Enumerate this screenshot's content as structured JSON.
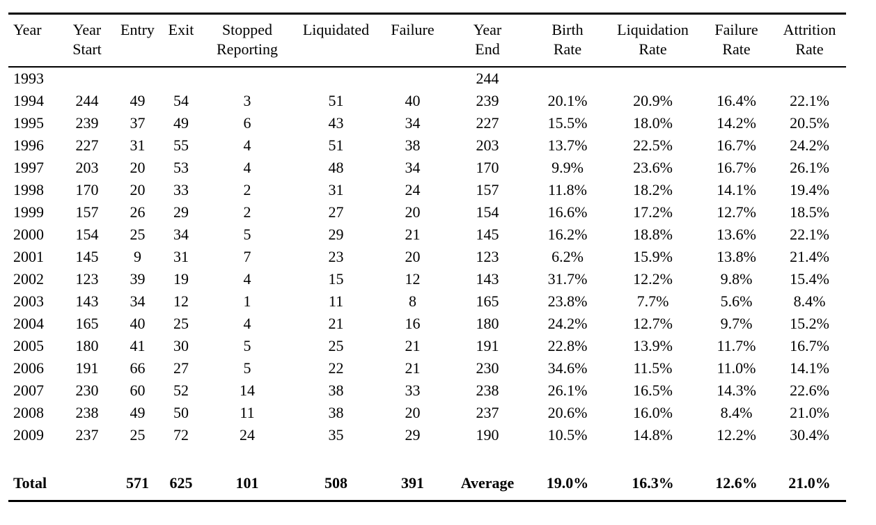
{
  "table": {
    "columns": [
      {
        "id": "year",
        "line1": "Year",
        "line2": ""
      },
      {
        "id": "year-start",
        "line1": "Year",
        "line2": "Start"
      },
      {
        "id": "entry",
        "line1": "Entry",
        "line2": ""
      },
      {
        "id": "exit",
        "line1": "Exit",
        "line2": ""
      },
      {
        "id": "stopped-reporting",
        "line1": "Stopped",
        "line2": "Reporting"
      },
      {
        "id": "liquidated",
        "line1": "Liquidated",
        "line2": ""
      },
      {
        "id": "failure",
        "line1": "Failure",
        "line2": ""
      },
      {
        "id": "year-end",
        "line1": "Year",
        "line2": "End"
      },
      {
        "id": "birth-rate",
        "line1": "Birth",
        "line2": "Rate"
      },
      {
        "id": "liquidation-rate",
        "line1": "Liquidation",
        "line2": "Rate"
      },
      {
        "id": "failure-rate",
        "line1": "Failure",
        "line2": "Rate"
      },
      {
        "id": "attrition-rate",
        "line1": "Attrition",
        "line2": "Rate"
      }
    ],
    "rows": [
      [
        "1993",
        "",
        "",
        "",
        "",
        "",
        "",
        "244",
        "",
        "",
        "",
        ""
      ],
      [
        "1994",
        "244",
        "49",
        "54",
        "3",
        "51",
        "40",
        "239",
        "20.1%",
        "20.9%",
        "16.4%",
        "22.1%"
      ],
      [
        "1995",
        "239",
        "37",
        "49",
        "6",
        "43",
        "34",
        "227",
        "15.5%",
        "18.0%",
        "14.2%",
        "20.5%"
      ],
      [
        "1996",
        "227",
        "31",
        "55",
        "4",
        "51",
        "38",
        "203",
        "13.7%",
        "22.5%",
        "16.7%",
        "24.2%"
      ],
      [
        "1997",
        "203",
        "20",
        "53",
        "4",
        "48",
        "34",
        "170",
        "9.9%",
        "23.6%",
        "16.7%",
        "26.1%"
      ],
      [
        "1998",
        "170",
        "20",
        "33",
        "2",
        "31",
        "24",
        "157",
        "11.8%",
        "18.2%",
        "14.1%",
        "19.4%"
      ],
      [
        "1999",
        "157",
        "26",
        "29",
        "2",
        "27",
        "20",
        "154",
        "16.6%",
        "17.2%",
        "12.7%",
        "18.5%"
      ],
      [
        "2000",
        "154",
        "25",
        "34",
        "5",
        "29",
        "21",
        "145",
        "16.2%",
        "18.8%",
        "13.6%",
        "22.1%"
      ],
      [
        "2001",
        "145",
        "9",
        "31",
        "7",
        "23",
        "20",
        "123",
        "6.2%",
        "15.9%",
        "13.8%",
        "21.4%"
      ],
      [
        "2002",
        "123",
        "39",
        "19",
        "4",
        "15",
        "12",
        "143",
        "31.7%",
        "12.2%",
        "9.8%",
        "15.4%"
      ],
      [
        "2003",
        "143",
        "34",
        "12",
        "1",
        "11",
        "8",
        "165",
        "23.8%",
        "7.7%",
        "5.6%",
        "8.4%"
      ],
      [
        "2004",
        "165",
        "40",
        "25",
        "4",
        "21",
        "16",
        "180",
        "24.2%",
        "12.7%",
        "9.7%",
        "15.2%"
      ],
      [
        "2005",
        "180",
        "41",
        "30",
        "5",
        "25",
        "21",
        "191",
        "22.8%",
        "13.9%",
        "11.7%",
        "16.7%"
      ],
      [
        "2006",
        "191",
        "66",
        "27",
        "5",
        "22",
        "21",
        "230",
        "34.6%",
        "11.5%",
        "11.0%",
        "14.1%"
      ],
      [
        "2007",
        "230",
        "60",
        "52",
        "14",
        "38",
        "33",
        "238",
        "26.1%",
        "16.5%",
        "14.3%",
        "22.6%"
      ],
      [
        "2008",
        "238",
        "49",
        "50",
        "11",
        "38",
        "20",
        "237",
        "20.6%",
        "16.0%",
        "8.4%",
        "21.0%"
      ],
      [
        "2009",
        "237",
        "25",
        "72",
        "24",
        "35",
        "29",
        "190",
        "10.5%",
        "14.8%",
        "12.2%",
        "30.4%"
      ]
    ],
    "summary_row": [
      "Total",
      "",
      "571",
      "625",
      "101",
      "508",
      "391",
      "Average",
      "19.0%",
      "16.3%",
      "12.6%",
      "21.0%"
    ]
  }
}
